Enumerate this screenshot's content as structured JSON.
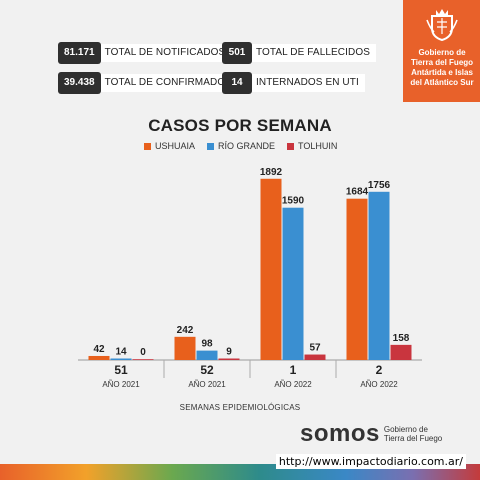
{
  "stats": [
    {
      "value": "81.171",
      "label": "TOTAL DE NOTIFICADOS"
    },
    {
      "value": "501",
      "label": "TOTAL DE FALLECIDOS"
    },
    {
      "value": "39.438",
      "label": "TOTAL DE CONFIRMADOS"
    },
    {
      "value": "14",
      "label": "INTERNADOS EN UTI"
    }
  ],
  "government": {
    "line1": "Gobierno de",
    "line2": "Tierra del Fuego",
    "line3": "Antártida e Islas",
    "line4": "del Atlántico Sur"
  },
  "chart_data": {
    "type": "bar",
    "title": "CASOS POR SEMANA",
    "xlabel": "SEMANAS EPIDEMIOLÓGICAS",
    "ylabel": "",
    "ylim": [
      0,
      1900
    ],
    "grid": false,
    "legend_position": "top-center",
    "categories": [
      {
        "week": "51",
        "year": "AÑO 2021"
      },
      {
        "week": "52",
        "year": "AÑO 2021"
      },
      {
        "week": "1",
        "year": "AÑO 2022"
      },
      {
        "week": "2",
        "year": "AÑO 2022"
      }
    ],
    "series": [
      {
        "name": "USHUAIA",
        "color": "#e8601c",
        "values": [
          42,
          242,
          1892,
          1684
        ]
      },
      {
        "name": "RÍO GRANDE",
        "color": "#3a8fd1",
        "values": [
          14,
          98,
          1590,
          1756
        ]
      },
      {
        "name": "TOLHUIN",
        "color": "#c9353e",
        "values": [
          0,
          9,
          57,
          158
        ]
      }
    ]
  },
  "footer": {
    "brand": "somos",
    "brand_sub1": "Gobierno de",
    "brand_sub2": "Tierra del Fuego",
    "url": "http://www.impactodiario.com.ar/"
  }
}
